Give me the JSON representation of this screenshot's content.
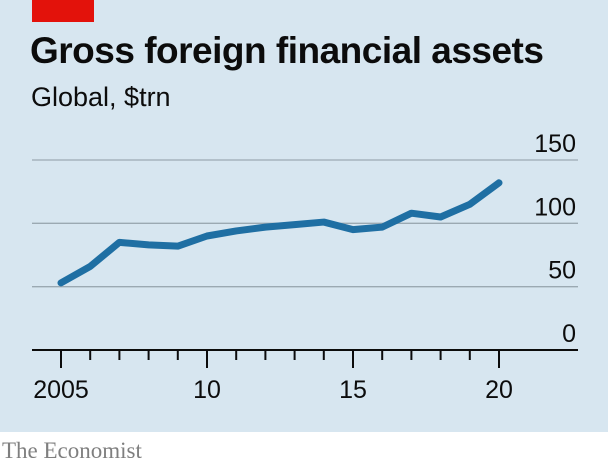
{
  "brand": {
    "accent_color": "#e3120b",
    "publisher": "The Economist"
  },
  "chart_data": {
    "type": "line",
    "title": "Gross foreign financial assets",
    "subtitle": "Global, $trn",
    "xlabel": "",
    "ylabel": "",
    "x": [
      2005,
      2006,
      2007,
      2008,
      2009,
      2010,
      2011,
      2012,
      2013,
      2014,
      2015,
      2016,
      2017,
      2018,
      2019,
      2020
    ],
    "series": [
      {
        "values": [
          53,
          66,
          85,
          83,
          82,
          90,
          94,
          97,
          99,
          101,
          95,
          97,
          108,
          105,
          115,
          132
        ],
        "color": "#1f6fa3"
      }
    ],
    "ylim": [
      0,
      150
    ],
    "xlim": [
      2005,
      2022.5
    ],
    "yticks": [
      0,
      50,
      100,
      150
    ],
    "ytick_labels": [
      "0",
      "50",
      "100",
      "150"
    ],
    "xticks_major": [
      2005,
      2010,
      2015,
      2020
    ],
    "xtick_labels": [
      "2005",
      "10",
      "15",
      "20"
    ],
    "grid": "horizontal",
    "colors": {
      "background": "#d7e6f0",
      "gridline": "#9ba9b2",
      "axis": "#0c0c0c"
    }
  }
}
